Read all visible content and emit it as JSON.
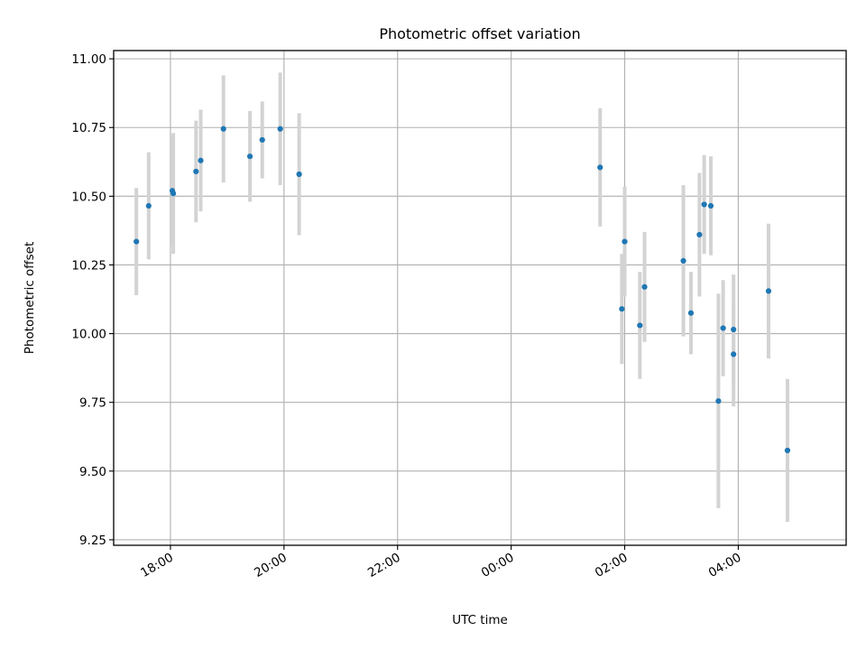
{
  "chart_data": {
    "type": "scatter",
    "title": "Photometric offset variation",
    "xlabel": "UTC time",
    "ylabel": "Photometric offset",
    "x_ticks": [
      "18:00",
      "20:00",
      "22:00",
      "00:00",
      "02:00",
      "04:00"
    ],
    "y_ticks": [
      "9.25",
      "9.50",
      "9.75",
      "10.00",
      "10.25",
      "10.50",
      "10.75",
      "11.00"
    ],
    "xlim": [
      "17:53",
      "05:50 (+1 day)"
    ],
    "ylim": [
      9.23,
      11.03
    ],
    "grid": true,
    "colors": {
      "points": "#1f77b4",
      "errorbars": "#d3d3d3",
      "grid": "#b0b0b0"
    },
    "points": [
      {
        "x": "17:24",
        "y": 10.335,
        "err": 0.195
      },
      {
        "x": "17:37",
        "y": 10.465,
        "err": 0.195
      },
      {
        "x": "18:02",
        "y": 10.52,
        "err": 0.2
      },
      {
        "x": "18:03",
        "y": 10.51,
        "err": 0.22
      },
      {
        "x": "18:27",
        "y": 10.59,
        "err": 0.185
      },
      {
        "x": "18:32",
        "y": 10.63,
        "err": 0.185
      },
      {
        "x": "18:56",
        "y": 10.745,
        "err": 0.195
      },
      {
        "x": "19:24",
        "y": 10.645,
        "err": 0.165
      },
      {
        "x": "19:37",
        "y": 10.705,
        "err": 0.14
      },
      {
        "x": "19:56",
        "y": 10.745,
        "err": 0.205
      },
      {
        "x": "20:16",
        "y": 10.58,
        "err": 0.222
      },
      {
        "x": "01:34",
        "y": 10.605,
        "err": 0.215
      },
      {
        "x": "01:57",
        "y": 10.09,
        "err": 0.2
      },
      {
        "x": "02:00",
        "y": 10.335,
        "err": 0.2
      },
      {
        "x": "02:16",
        "y": 10.03,
        "err": 0.195
      },
      {
        "x": "02:21",
        "y": 10.17,
        "err": 0.2
      },
      {
        "x": "03:02",
        "y": 10.265,
        "err": 0.275
      },
      {
        "x": "03:10",
        "y": 10.075,
        "err": 0.15
      },
      {
        "x": "03:19",
        "y": 10.36,
        "err": 0.225
      },
      {
        "x": "03:24",
        "y": 10.47,
        "err": 0.18
      },
      {
        "x": "03:31",
        "y": 10.465,
        "err": 0.18
      },
      {
        "x": "03:39",
        "y": 9.755,
        "err": 0.39
      },
      {
        "x": "03:44",
        "y": 10.02,
        "err": 0.175
      },
      {
        "x": "03:55",
        "y": 10.015,
        "err": 0.2
      },
      {
        "x": "03:55",
        "y": 9.925,
        "err": 0.19
      },
      {
        "x": "04:32",
        "y": 10.155,
        "err": 0.245
      },
      {
        "x": "04:52",
        "y": 9.575,
        "err": 0.26
      }
    ]
  }
}
